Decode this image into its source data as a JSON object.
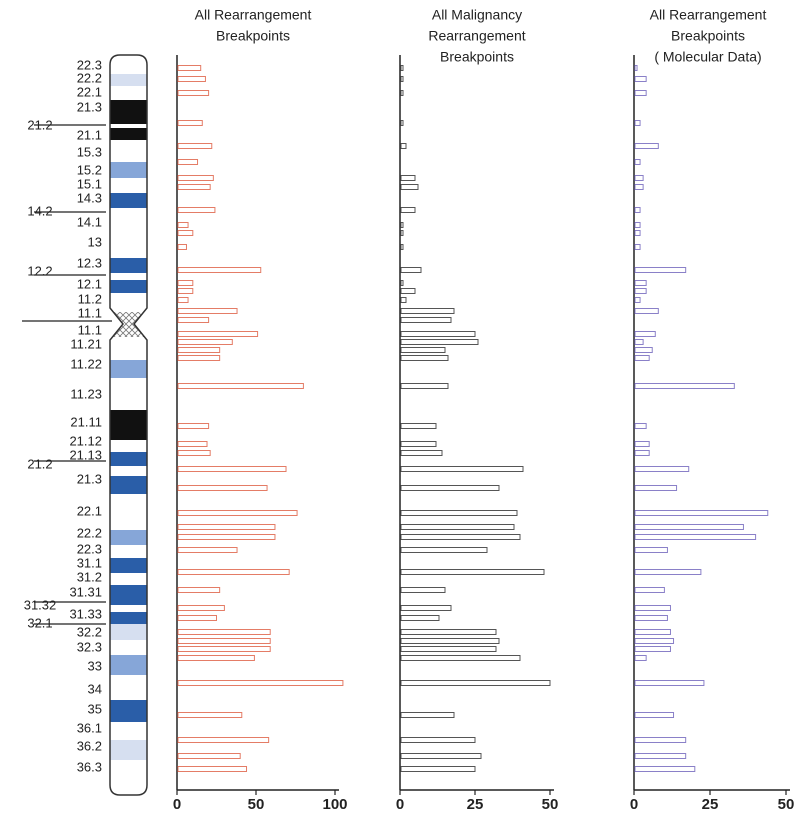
{
  "ideogram": {
    "bands": [
      "22.3",
      "22.2",
      "22.1",
      "21.3",
      "21.1",
      "15.3",
      "15.2",
      "15.1",
      "14.3",
      "14.1",
      "13",
      "12.3",
      "12.1",
      "11.2",
      "11.1",
      "11.1",
      "11.21",
      "11.22",
      "11.23",
      "21.11",
      "21.12",
      "21.13",
      "21.3",
      "22.1",
      "22.2",
      "22.3",
      "31.1",
      "31.2",
      "31.31",
      "31.33",
      "32.2",
      "32.3",
      "33",
      "34",
      "35",
      "36.1",
      "36.2",
      "36.3"
    ],
    "arm_labels": [
      "21.2",
      "14.2",
      "12.2",
      "21.2",
      "31.32",
      "32.1"
    ]
  },
  "chart_data": [
    {
      "type": "bar",
      "orientation": "horizontal",
      "title": [
        "All Rearrangement",
        "Breakpoints"
      ],
      "color": "#e47c66",
      "values": [
        15,
        18,
        20,
        16,
        22,
        13,
        23,
        21,
        24,
        7,
        10,
        6,
        53,
        10,
        10,
        7,
        38,
        20,
        51,
        35,
        27,
        27,
        80,
        20,
        19,
        21,
        69,
        57,
        76,
        62,
        62,
        38,
        71,
        27,
        30,
        25,
        59,
        59,
        59,
        49,
        105,
        41,
        58,
        40,
        44
      ],
      "xlim": [
        0,
        100
      ],
      "xticks": [
        0,
        50,
        100
      ]
    },
    {
      "type": "bar",
      "orientation": "horizontal",
      "title": [
        "All Malignancy",
        "Rearrangement",
        "Breakpoints"
      ],
      "color": "#555555",
      "values": [
        1,
        1,
        1,
        1,
        2,
        null,
        5,
        6,
        5,
        1,
        1,
        1,
        7,
        1,
        5,
        2,
        18,
        17,
        25,
        26,
        15,
        16,
        16,
        12,
        12,
        14,
        41,
        33,
        39,
        38,
        40,
        29,
        48,
        15,
        17,
        13,
        32,
        33,
        32,
        40,
        50,
        18,
        25,
        27,
        25
      ],
      "xlim": [
        0,
        50
      ],
      "xticks": [
        0,
        25,
        50
      ]
    },
    {
      "type": "bar",
      "orientation": "horizontal",
      "title": [
        "All Rearrangement",
        "Breakpoints",
        "( Molecular Data)"
      ],
      "color": "#8a80c8",
      "values": [
        1,
        4,
        4,
        2,
        8,
        2,
        3,
        3,
        2,
        2,
        2,
        2,
        17,
        4,
        4,
        2,
        8,
        null,
        7,
        3,
        6,
        5,
        33,
        4,
        5,
        5,
        18,
        14,
        44,
        36,
        40,
        11,
        22,
        10,
        12,
        11,
        12,
        13,
        12,
        4,
        23,
        13,
        17,
        17,
        20
      ],
      "xlim": [
        0,
        50
      ],
      "xticks": [
        0,
        25,
        50
      ]
    }
  ]
}
